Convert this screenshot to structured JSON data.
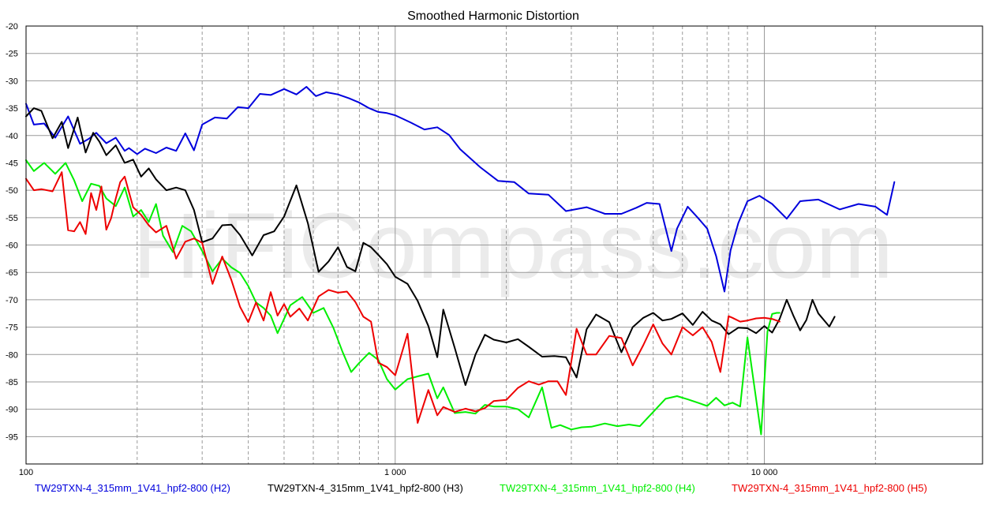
{
  "chart_data": {
    "type": "line",
    "title": "Smoothed Harmonic Distortion",
    "watermark": "HiFiCompass.com",
    "xlabel": "",
    "ylabel": "",
    "x_scale": "log",
    "xlim": [
      100,
      39000
    ],
    "ylim": [
      -100,
      -20
    ],
    "y_ticks": [
      -20,
      -25,
      -30,
      -35,
      -40,
      -45,
      -50,
      -55,
      -60,
      -65,
      -70,
      -75,
      -80,
      -85,
      -90,
      -95
    ],
    "y_tick_labels": [
      "-20",
      "-25",
      "-30",
      "-35",
      "-40",
      "-45",
      "-50",
      "-55",
      "-60",
      "-65",
      "-70",
      "-75",
      "-80",
      "-85",
      "-90",
      "-95"
    ],
    "x_major_ticks": [
      100,
      1000,
      10000
    ],
    "x_tick_labels": [
      "100",
      "1 000",
      "10 000"
    ],
    "x_minor_ticks": [
      200,
      300,
      400,
      500,
      600,
      700,
      800,
      900,
      2000,
      3000,
      4000,
      5000,
      6000,
      7000,
      8000,
      9000,
      20000
    ],
    "grid": true,
    "legend_position": "bottom",
    "colors": {
      "background": "#ffffff",
      "grid": "#9a9a9a",
      "axis": "#000000"
    },
    "series": [
      {
        "name": "TW29TXN-4_315mm_1V41_hpf2-800 (H2)",
        "color": "#0000dd",
        "x": [
          100,
          105,
          112,
          120,
          130,
          140,
          148,
          155,
          165,
          175,
          185,
          190,
          200,
          210,
          225,
          240,
          255,
          270,
          285,
          300,
          325,
          350,
          375,
          400,
          430,
          460,
          500,
          540,
          575,
          610,
          650,
          700,
          750,
          800,
          850,
          900,
          950,
          1000,
          1100,
          1200,
          1300,
          1400,
          1500,
          1700,
          1900,
          2100,
          2300,
          2600,
          2900,
          3300,
          3700,
          4100,
          4500,
          4800,
          5200,
          5600,
          5800,
          6200,
          6600,
          7000,
          7400,
          7800,
          8100,
          8500,
          9000,
          9700,
          10500,
          11500,
          12500,
          14000,
          16000,
          18000,
          20000,
          21500,
          22500
        ],
        "y": [
          -34.2,
          -38,
          -37.8,
          -40.4,
          -36.5,
          -41.5,
          -40.6,
          -39.5,
          -41.4,
          -40.4,
          -42.8,
          -42.3,
          -43.4,
          -42.4,
          -43.2,
          -42.2,
          -42.8,
          -39.6,
          -42.7,
          -38,
          -36.7,
          -36.9,
          -34.8,
          -35,
          -32.4,
          -32.6,
          -31.5,
          -32.5,
          -31.1,
          -32.8,
          -32.1,
          -32.5,
          -33.2,
          -34,
          -35,
          -35.7,
          -35.9,
          -36.3,
          -37.6,
          -38.9,
          -38.5,
          -39.9,
          -42.5,
          -45.8,
          -48.3,
          -48.5,
          -50.6,
          -50.8,
          -53.8,
          -53.1,
          -54.3,
          -54.3,
          -53.2,
          -52.3,
          -52.5,
          -61.1,
          -57,
          -53,
          -55,
          -57,
          -62,
          -68.5,
          -61,
          -56,
          -52,
          -51,
          -52.5,
          -55.2,
          -52,
          -51.7,
          -53.5,
          -52.5,
          -53,
          -54.5,
          -48.5
        ]
      },
      {
        "name": "TW29TXN-4_315mm_1V41_hpf2-800 (H3)",
        "color": "#000000",
        "x": [
          100,
          105,
          110,
          118,
          125,
          130,
          138,
          145,
          152,
          158,
          165,
          175,
          185,
          195,
          205,
          215,
          225,
          240,
          255,
          270,
          285,
          300,
          320,
          340,
          360,
          380,
          410,
          440,
          470,
          500,
          540,
          580,
          620,
          660,
          700,
          740,
          780,
          820,
          860,
          900,
          950,
          1000,
          1080,
          1150,
          1230,
          1300,
          1350,
          1450,
          1550,
          1650,
          1750,
          1850,
          2000,
          2150,
          2300,
          2500,
          2700,
          2900,
          3100,
          3300,
          3500,
          3800,
          4100,
          4400,
          4700,
          5000,
          5300,
          5600,
          6000,
          6400,
          6800,
          7200,
          7600,
          8000,
          8500,
          9000,
          9500,
          10000,
          10500,
          11000,
          11500,
          12000,
          12500,
          13000,
          13500,
          14000,
          15000,
          15500
        ],
        "y": [
          -36.5,
          -35,
          -35.5,
          -40.5,
          -37.5,
          -42.3,
          -36.7,
          -43.1,
          -39.5,
          -41.1,
          -43.6,
          -41.8,
          -45,
          -44.4,
          -47.5,
          -46,
          -48,
          -50,
          -49.5,
          -50,
          -53.6,
          -59.5,
          -58.8,
          -56.4,
          -56.3,
          -58.2,
          -61.9,
          -58.2,
          -57.5,
          -54.8,
          -49.1,
          -56,
          -64.9,
          -63,
          -60.4,
          -64,
          -64.8,
          -59.6,
          -60.4,
          -61.8,
          -63.5,
          -65.8,
          -67.1,
          -70.2,
          -74.8,
          -80.5,
          -71.8,
          -78.8,
          -85.6,
          -80,
          -76.4,
          -77.3,
          -77.8,
          -77.2,
          -78.6,
          -80.4,
          -80.3,
          -80.5,
          -84.2,
          -75.4,
          -72.7,
          -74.1,
          -79.6,
          -75,
          -73.3,
          -72.4,
          -73.8,
          -73.5,
          -72.5,
          -74.6,
          -72.2,
          -73.8,
          -74.5,
          -76.3,
          -75.1,
          -75.2,
          -76.1,
          -74.8,
          -76,
          -73.5,
          -70,
          -73,
          -75.6,
          -73.7,
          -70,
          -72.5,
          -74.9,
          -73.1
        ]
      },
      {
        "name": "TW29TXN-4_315mm_1V41_hpf2-800 (H4)",
        "color": "#00ee00",
        "x": [
          100,
          105,
          112,
          120,
          128,
          135,
          142,
          150,
          158,
          165,
          175,
          185,
          195,
          205,
          215,
          225,
          235,
          250,
          265,
          280,
          300,
          320,
          340,
          360,
          380,
          400,
          420,
          440,
          460,
          480,
          520,
          560,
          600,
          640,
          680,
          720,
          760,
          800,
          850,
          900,
          950,
          1000,
          1080,
          1150,
          1230,
          1300,
          1350,
          1450,
          1550,
          1650,
          1750,
          1850,
          2000,
          2150,
          2300,
          2500,
          2650,
          2800,
          3000,
          3200,
          3400,
          3700,
          4000,
          4300,
          4600,
          5000,
          5400,
          5800,
          6200,
          6600,
          7000,
          7400,
          7800,
          8200,
          8600,
          9000,
          9400,
          9800,
          10200,
          10500,
          10800,
          11000
        ],
        "y": [
          -44.5,
          -46.5,
          -45,
          -47,
          -45,
          -48.2,
          -52,
          -48.8,
          -49.2,
          -51.5,
          -52.9,
          -49.5,
          -54.8,
          -53.6,
          -55.8,
          -52.5,
          -58.3,
          -61.3,
          -56.5,
          -57.5,
          -61.1,
          -64.8,
          -62.5,
          -64.1,
          -65.1,
          -67.5,
          -70.5,
          -71.5,
          -72.9,
          -76.1,
          -71,
          -69.5,
          -72.4,
          -71.5,
          -75.1,
          -79.5,
          -83.2,
          -81.5,
          -79.7,
          -81,
          -84.5,
          -86.4,
          -84.5,
          -84,
          -83.5,
          -88,
          -86,
          -90.7,
          -90.5,
          -90.8,
          -89.2,
          -89.5,
          -89.5,
          -90,
          -91.5,
          -86,
          -93.4,
          -92.9,
          -93.7,
          -93.3,
          -93.2,
          -92.6,
          -93.1,
          -92.8,
          -93.1,
          -90.5,
          -88.1,
          -87.6,
          -88.2,
          -88.8,
          -89.4,
          -87.9,
          -89.3,
          -88.8,
          -89.5,
          -76.9,
          -86,
          -94.6,
          -75.8,
          -72.6,
          -72.4,
          -72.4
        ]
      },
      {
        "name": "TW29TXN-4_315mm_1V41_hpf2-800 (H5)",
        "color": "#ee0000",
        "x": [
          100,
          105,
          110,
          118,
          125,
          130,
          135,
          140,
          145,
          150,
          155,
          160,
          165,
          170,
          175,
          180,
          185,
          195,
          205,
          215,
          225,
          240,
          255,
          270,
          285,
          300,
          320,
          340,
          360,
          380,
          400,
          420,
          440,
          460,
          480,
          500,
          520,
          550,
          580,
          620,
          660,
          700,
          740,
          780,
          820,
          860,
          900,
          950,
          1000,
          1080,
          1150,
          1230,
          1300,
          1350,
          1450,
          1550,
          1650,
          1750,
          1850,
          2000,
          2150,
          2300,
          2450,
          2600,
          2750,
          2900,
          3100,
          3300,
          3500,
          3800,
          4100,
          4400,
          4700,
          5000,
          5300,
          5600,
          6000,
          6400,
          6800,
          7200,
          7600,
          8000,
          8200,
          8600,
          9000,
          9500,
          10000,
          10500,
          11000
        ],
        "y": [
          -47.9,
          -50,
          -49.8,
          -50.2,
          -46.7,
          -57.3,
          -57.5,
          -55.8,
          -58,
          -50.5,
          -53.6,
          -49.3,
          -57.2,
          -55.1,
          -51.5,
          -48.5,
          -47.5,
          -53.1,
          -54.5,
          -56.4,
          -57.7,
          -56.5,
          -62.5,
          -59.4,
          -58.8,
          -59.6,
          -67.1,
          -62.1,
          -66.4,
          -71.3,
          -74.1,
          -70.5,
          -73.8,
          -68.6,
          -72.9,
          -70.8,
          -73.1,
          -71.6,
          -73.8,
          -69.4,
          -68.2,
          -68.7,
          -68.5,
          -70.4,
          -73.1,
          -74,
          -81.5,
          -82.3,
          -83.8,
          -76.2,
          -92.5,
          -86.5,
          -91.1,
          -89.6,
          -90.5,
          -89.9,
          -90.4,
          -89.8,
          -88.5,
          -88.3,
          -86.1,
          -84.9,
          -85.5,
          -84.9,
          -84.9,
          -87.4,
          -75.3,
          -80,
          -80,
          -76.6,
          -77,
          -82,
          -78.3,
          -74.5,
          -78,
          -80,
          -75,
          -76.5,
          -75,
          -77.7,
          -83.2,
          -73,
          -73.3,
          -74,
          -73.8,
          -73.4,
          -73.3,
          -73.5,
          -74
        ]
      }
    ]
  }
}
